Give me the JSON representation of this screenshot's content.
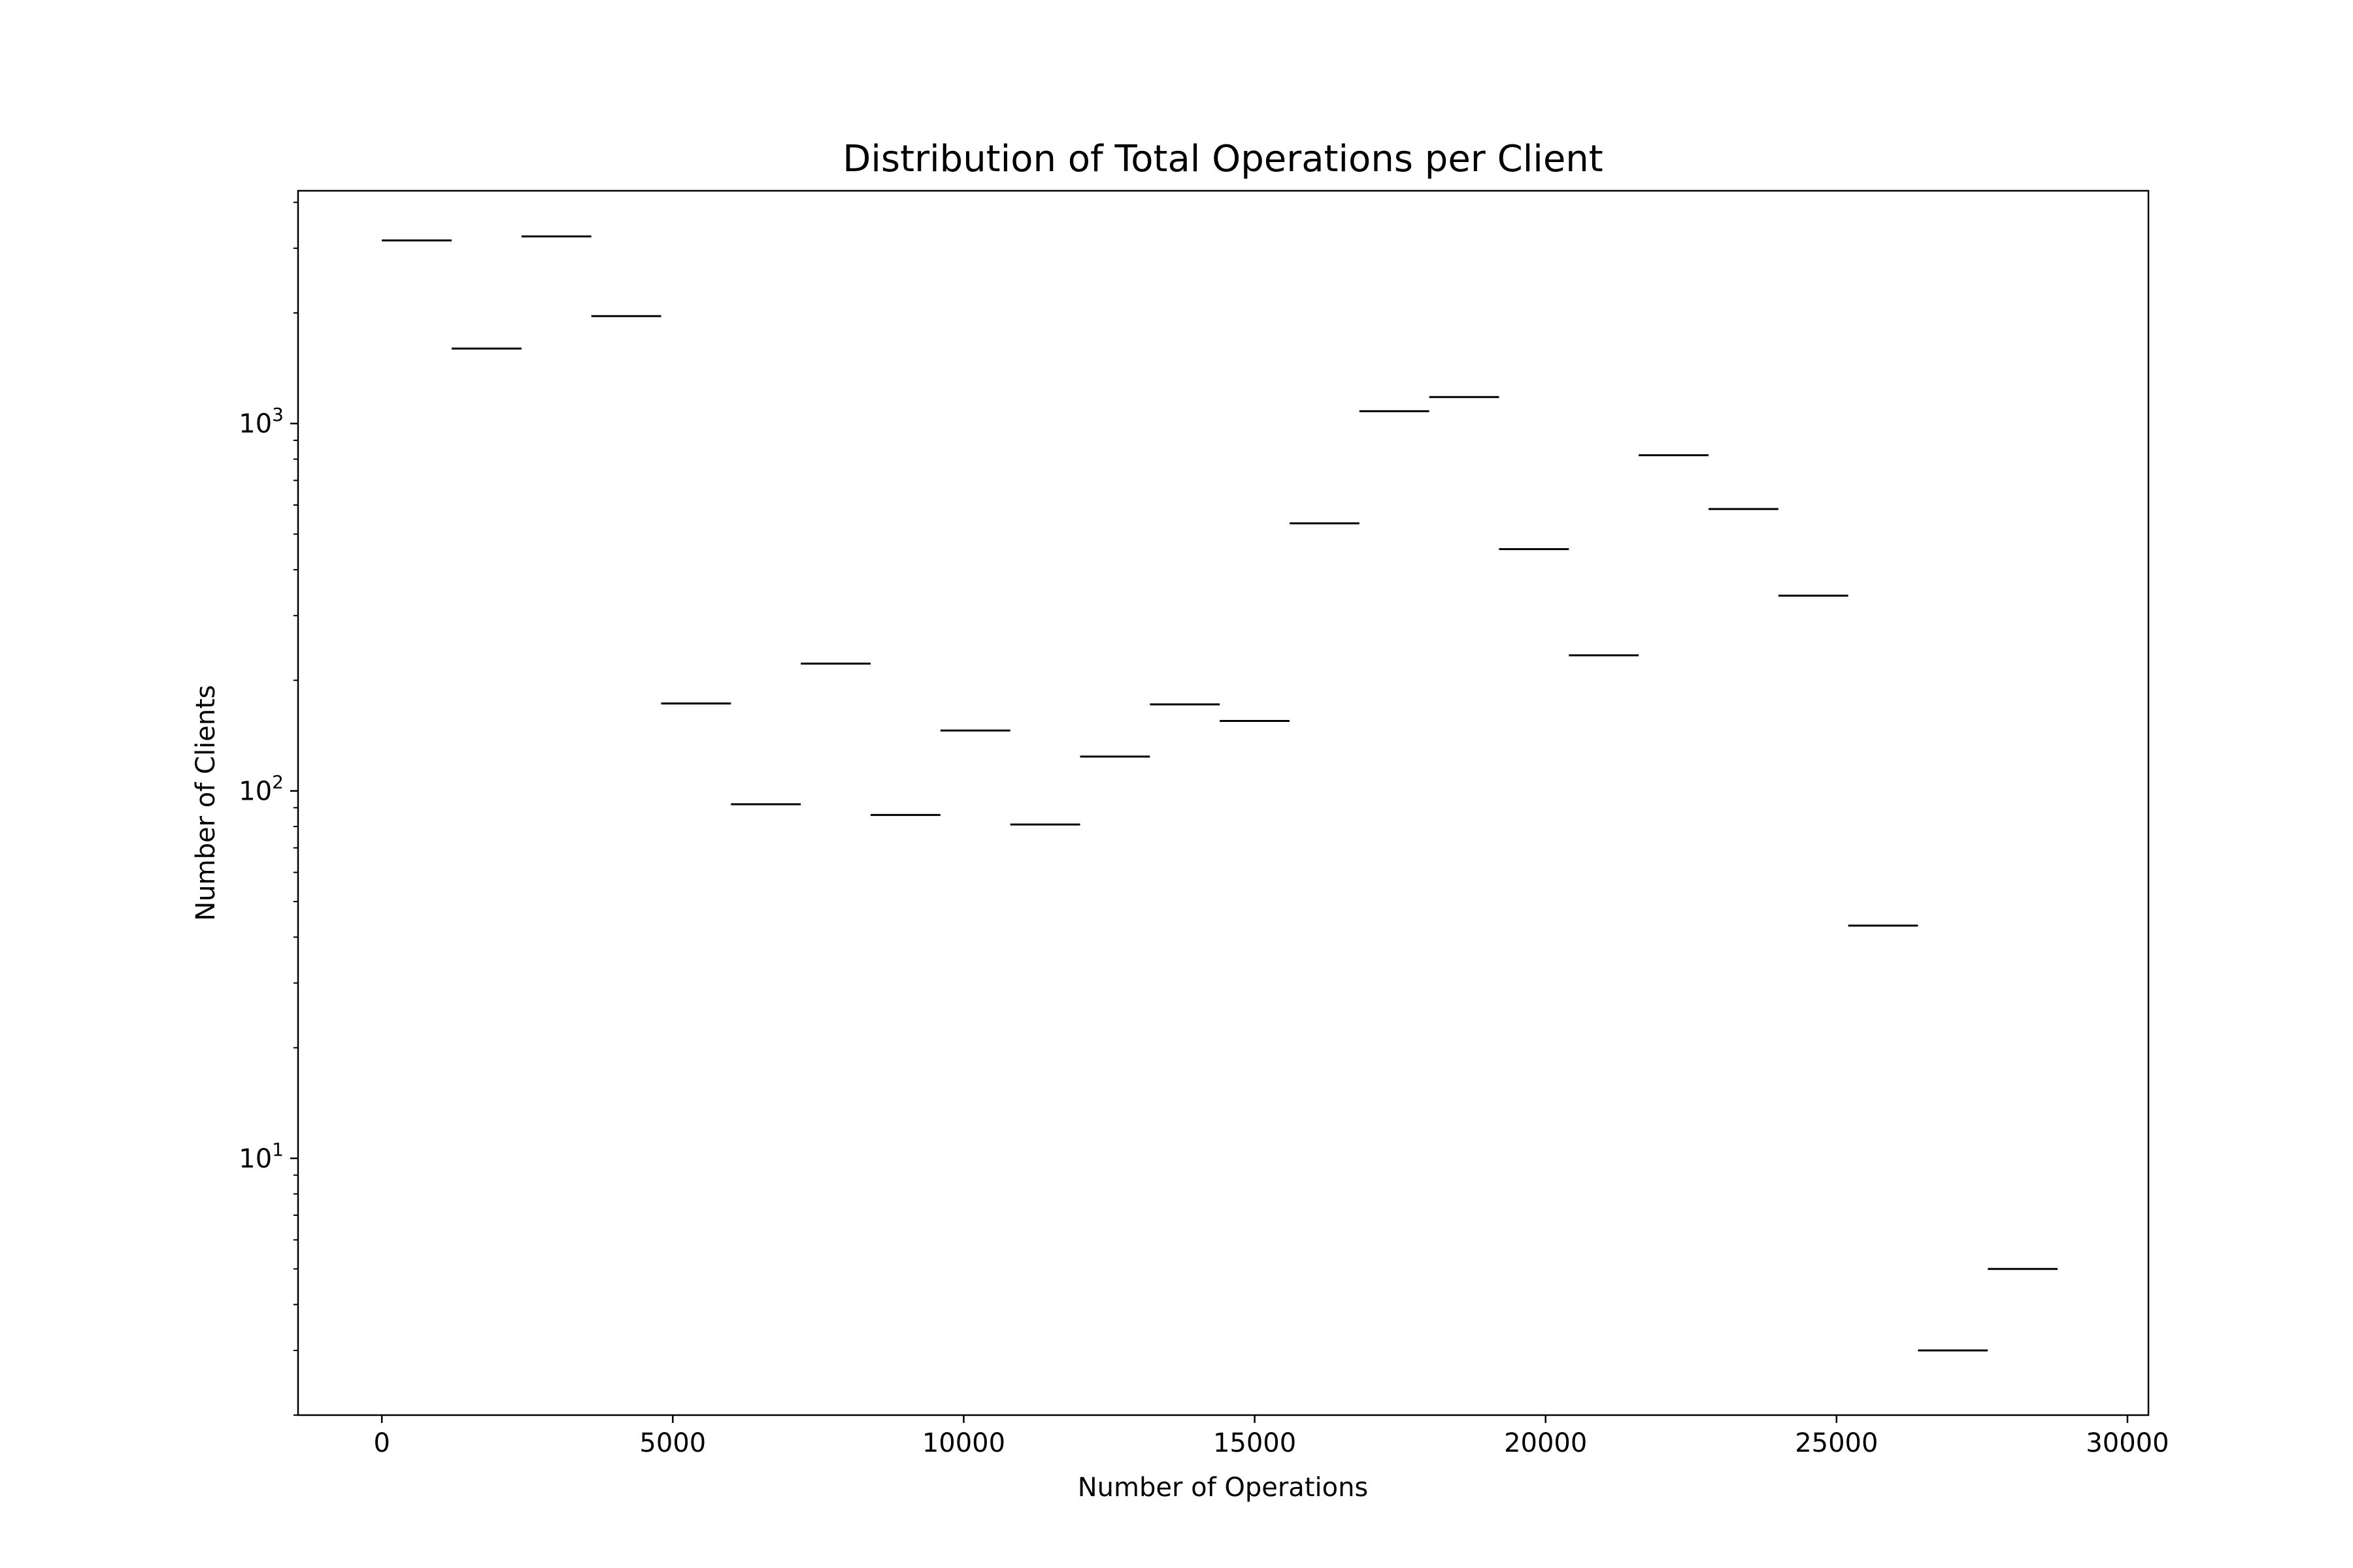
{
  "chart_data": {
    "type": "bar",
    "style": "step-outline",
    "title": "Distribution of Total Operations per Client",
    "xlabel": "Number of Operations",
    "ylabel": "Number of Clients",
    "yscale": "log",
    "xlim": [
      -1440,
      30360
    ],
    "ylim": [
      2.0,
      4300
    ],
    "grid": false,
    "legend": "none",
    "line_color": "#000000",
    "x_ticks": [
      0,
      5000,
      10000,
      15000,
      20000,
      25000,
      30000
    ],
    "x_tick_labels": [
      "0",
      "5000",
      "10000",
      "15000",
      "20000",
      "25000",
      "30000"
    ],
    "y_ticks": [
      {
        "value": 10,
        "base": "10",
        "exp": "1"
      },
      {
        "value": 100,
        "base": "10",
        "exp": "2"
      },
      {
        "value": 1000,
        "base": "10",
        "exp": "3"
      }
    ],
    "bins": [
      {
        "x0": 0,
        "x1": 1200,
        "count": 3150
      },
      {
        "x0": 1200,
        "x1": 2400,
        "count": 1600
      },
      {
        "x0": 2400,
        "x1": 3600,
        "count": 3230
      },
      {
        "x0": 3600,
        "x1": 4800,
        "count": 1960
      },
      {
        "x0": 4800,
        "x1": 6000,
        "count": 173
      },
      {
        "x0": 6000,
        "x1": 7200,
        "count": 92
      },
      {
        "x0": 7200,
        "x1": 8400,
        "count": 222
      },
      {
        "x0": 8400,
        "x1": 9600,
        "count": 86
      },
      {
        "x0": 9600,
        "x1": 10800,
        "count": 146
      },
      {
        "x0": 10800,
        "x1": 12000,
        "count": 81
      },
      {
        "x0": 12000,
        "x1": 13200,
        "count": 124
      },
      {
        "x0": 13200,
        "x1": 14400,
        "count": 172
      },
      {
        "x0": 14400,
        "x1": 15600,
        "count": 155
      },
      {
        "x0": 15600,
        "x1": 16800,
        "count": 535
      },
      {
        "x0": 16800,
        "x1": 18000,
        "count": 1080
      },
      {
        "x0": 18000,
        "x1": 19200,
        "count": 1180
      },
      {
        "x0": 19200,
        "x1": 20400,
        "count": 455
      },
      {
        "x0": 20400,
        "x1": 21600,
        "count": 234
      },
      {
        "x0": 21600,
        "x1": 22800,
        "count": 820
      },
      {
        "x0": 22800,
        "x1": 24000,
        "count": 585
      },
      {
        "x0": 24000,
        "x1": 25200,
        "count": 340
      },
      {
        "x0": 25200,
        "x1": 26400,
        "count": 43
      },
      {
        "x0": 26400,
        "x1": 27600,
        "count": 3
      },
      {
        "x0": 27600,
        "x1": 28800,
        "count": 5
      }
    ]
  }
}
